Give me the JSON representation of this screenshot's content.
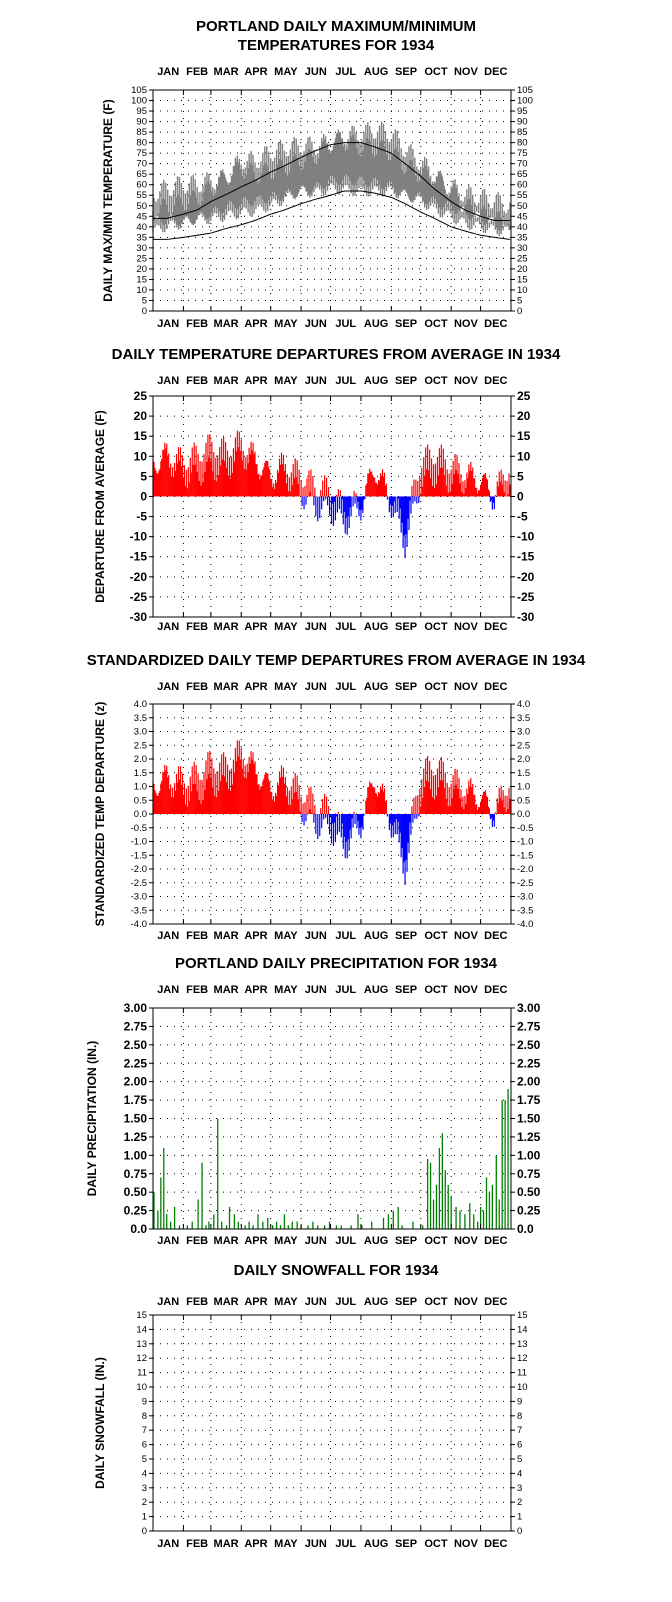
{
  "chart_data": [
    {
      "type": "line",
      "title": "PORTLAND DAILY MAXIMUM/MINIMUM",
      "subtitle": "TEMPERATURES FOR 1934",
      "ylabel": "DAILY MAX/MIN TEMPERATURE (F)",
      "xlabel": "",
      "months": [
        "JAN",
        "FEB",
        "MAR",
        "APR",
        "MAY",
        "JUN",
        "JUL",
        "AUG",
        "SEP",
        "OCT",
        "NOV",
        "DEC"
      ],
      "ylim": [
        0,
        105
      ],
      "yticks": [
        0,
        5,
        10,
        15,
        20,
        25,
        30,
        35,
        40,
        45,
        50,
        55,
        60,
        65,
        70,
        75,
        80,
        85,
        90,
        95,
        100,
        105
      ],
      "grid": true,
      "colors": {
        "daily_range": "#808080",
        "normals": "#000000"
      },
      "series": [
        {
          "x": [
            1,
            15,
            32,
            46,
            60,
            74,
            91,
            105,
            121,
            135,
            152,
            166,
            182,
            196,
            213,
            227,
            244,
            258,
            274,
            288,
            305,
            319,
            335,
            349,
            365
          ],
          "values": [
            44,
            44,
            46,
            48,
            52,
            55,
            59,
            62,
            66,
            69,
            73,
            76,
            79,
            80,
            80,
            78,
            75,
            70,
            64,
            58,
            52,
            48,
            45,
            43,
            43
          ]
        },
        {
          "x": [
            1,
            15,
            32,
            46,
            60,
            74,
            91,
            105,
            121,
            135,
            152,
            166,
            182,
            196,
            213,
            227,
            244,
            258,
            274,
            288,
            305,
            319,
            335,
            349,
            365
          ],
          "values": [
            34,
            34,
            35,
            36,
            37,
            39,
            41,
            43,
            46,
            48,
            51,
            53,
            55,
            57,
            57,
            56,
            54,
            51,
            47,
            44,
            40,
            38,
            36,
            35,
            34
          ]
        },
        {
          "x": [
            1,
            16,
            32,
            46,
            60,
            74,
            91,
            105,
            121,
            135,
            152,
            166,
            182,
            196,
            213,
            227,
            244,
            258,
            274,
            288,
            305,
            319,
            335,
            349,
            365
          ],
          "values": [
            52,
            54,
            56,
            57,
            60,
            63,
            70,
            68,
            71,
            73,
            75,
            76,
            80,
            82,
            81,
            82,
            80,
            73,
            68,
            64,
            58,
            53,
            50,
            48,
            46
          ]
        },
        {
          "x": [
            1,
            16,
            32,
            46,
            60,
            74,
            91,
            105,
            121,
            135,
            152,
            166,
            182,
            196,
            213,
            227,
            244,
            258,
            274,
            288,
            305,
            319,
            335,
            349,
            365
          ],
          "values": [
            40,
            42,
            42,
            44,
            45,
            47,
            49,
            50,
            52,
            54,
            57,
            57,
            60,
            60,
            59,
            59,
            58,
            55,
            53,
            50,
            47,
            44,
            42,
            40,
            38
          ]
        }
      ]
    },
    {
      "type": "bar",
      "title": "DAILY TEMPERATURE DEPARTURES FROM AVERAGE IN 1934",
      "ylabel": "DEPARTURE FROM AVERAGE (F)",
      "xlabel": "",
      "months": [
        "JAN",
        "FEB",
        "MAR",
        "APR",
        "MAY",
        "JUN",
        "JUL",
        "AUG",
        "SEP",
        "OCT",
        "NOV",
        "DEC"
      ],
      "ylim": [
        -30,
        25
      ],
      "yticks": [
        -30,
        -25,
        -20,
        -15,
        -10,
        -5,
        0,
        5,
        10,
        15,
        20,
        25
      ],
      "grid": true,
      "colors": {
        "above": "#ff0000",
        "below": "#0000ff"
      },
      "x": [
        1,
        15,
        32,
        46,
        60,
        74,
        91,
        105,
        121,
        135,
        152,
        166,
        182,
        196,
        213,
        227,
        244,
        258,
        274,
        288,
        305,
        319,
        335,
        349,
        365
      ],
      "values": [
        8,
        10,
        7,
        8,
        10,
        9,
        12,
        9,
        5,
        7,
        3,
        0,
        -1,
        -5,
        -2,
        7,
        -1,
        -10,
        6,
        8,
        6,
        5,
        4,
        0,
        6
      ]
    },
    {
      "type": "bar",
      "title": "STANDARDIZED DAILY TEMP DEPARTURES FROM AVERAGE IN 1934",
      "ylabel": "STANDARDIZED TEMP DEPARTURE (z)",
      "xlabel": "",
      "months": [
        "JAN",
        "FEB",
        "MAR",
        "APR",
        "MAY",
        "JUN",
        "JUL",
        "AUG",
        "SEP",
        "OCT",
        "NOV",
        "DEC"
      ],
      "ylim": [
        -4.0,
        4.0
      ],
      "yticks": [
        "-4.0",
        "-3.5",
        "-3.0",
        "-2.5",
        "-2.0",
        "-1.5",
        "-1.0",
        "-0.5",
        "0.0",
        "0.5",
        "1.0",
        "1.5",
        "2.0",
        "2.5",
        "3.0",
        "3.5",
        "4.0"
      ],
      "grid": true,
      "colors": {
        "above": "#ff0000",
        "below": "#0000ff"
      },
      "x": [
        1,
        15,
        32,
        46,
        60,
        74,
        91,
        105,
        121,
        135,
        152,
        166,
        182,
        196,
        213,
        227,
        244,
        258,
        274,
        288,
        305,
        319,
        335,
        349,
        365
      ],
      "values": [
        1.0,
        1.3,
        1.0,
        1.1,
        1.5,
        1.4,
        2.1,
        1.6,
        0.9,
        1.2,
        0.5,
        0.0,
        -0.2,
        -1.0,
        -0.3,
        1.3,
        -0.2,
        -1.8,
        1.1,
        1.4,
        1.0,
        0.8,
        0.6,
        0.0,
        1.0
      ]
    },
    {
      "type": "bar",
      "title": "PORTLAND DAILY PRECIPITATION FOR 1934",
      "ylabel": "DAILY PRECIPITATION (IN.)",
      "xlabel": "",
      "months": [
        "JAN",
        "FEB",
        "MAR",
        "APR",
        "MAY",
        "JUN",
        "JUL",
        "AUG",
        "SEP",
        "OCT",
        "NOV",
        "DEC"
      ],
      "ylim": [
        0,
        3.0
      ],
      "yticks": [
        "0.0",
        "0.25",
        "0.50",
        "0.75",
        "1.00",
        "1.25",
        "1.50",
        "1.75",
        "2.00",
        "2.25",
        "2.50",
        "2.75",
        "3.00"
      ],
      "grid": true,
      "colors": {
        "bars": "#008000"
      },
      "x": [
        2,
        6,
        9,
        12,
        15,
        19,
        23,
        28,
        36,
        41,
        47,
        51,
        55,
        58,
        63,
        67,
        71,
        76,
        79,
        84,
        88,
        95,
        99,
        103,
        108,
        113,
        118,
        123,
        127,
        131,
        135,
        139,
        143,
        148,
        152,
        159,
        164,
        169,
        176,
        181,
        188,
        193,
        203,
        210,
        214,
        224,
        236,
        241,
        246,
        251,
        255,
        266,
        276,
        281,
        284,
        287,
        290,
        293,
        296,
        299,
        302,
        305,
        310,
        314,
        319,
        324,
        328,
        332,
        335,
        338,
        341,
        344,
        347,
        351,
        354,
        357,
        360,
        363
      ],
      "values": [
        0.5,
        0.25,
        0.7,
        1.1,
        0.2,
        0.1,
        0.3,
        0.05,
        0.05,
        0.1,
        0.4,
        0.9,
        0.05,
        0.1,
        0.2,
        1.5,
        0.1,
        0.05,
        0.3,
        0.2,
        0.1,
        0.05,
        0.1,
        0.05,
        0.2,
        0.1,
        0.15,
        0.05,
        0.1,
        0.05,
        0.2,
        0.05,
        0.1,
        0.1,
        0.05,
        0.05,
        0.1,
        0.05,
        0.05,
        0.1,
        0.05,
        0.05,
        0.05,
        0.2,
        0.05,
        0.1,
        0.15,
        0.2,
        0.25,
        0.3,
        0.05,
        0.1,
        0.05,
        0.95,
        0.9,
        0.4,
        0.6,
        1.1,
        1.3,
        0.8,
        0.6,
        0.45,
        0.3,
        0.25,
        0.2,
        0.35,
        0.2,
        0.1,
        0.3,
        0.25,
        0.7,
        0.5,
        0.6,
        1.0,
        0.4,
        1.75,
        1.75,
        1.9
      ]
    },
    {
      "type": "bar",
      "title": "DAILY SNOWFALL FOR 1934",
      "ylabel": "DAILY SNOWFALL (IN.)",
      "xlabel": "",
      "months": [
        "JAN",
        "FEB",
        "MAR",
        "APR",
        "MAY",
        "JUN",
        "JUL",
        "AUG",
        "SEP",
        "OCT",
        "NOV",
        "DEC"
      ],
      "ylim": [
        0,
        15
      ],
      "yticks": [
        0,
        1,
        2,
        3,
        4,
        5,
        6,
        7,
        8,
        9,
        10,
        11,
        12,
        13,
        14,
        15
      ],
      "grid": true,
      "colors": {
        "bars": "#00c0ff"
      },
      "x": [],
      "values": []
    }
  ]
}
